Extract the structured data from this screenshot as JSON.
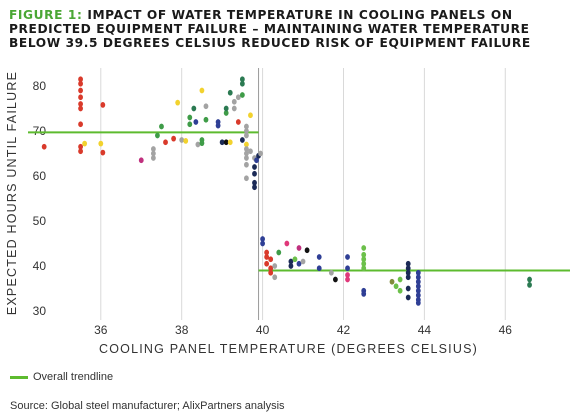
{
  "title": {
    "figure_label": "FIGURE 1:",
    "text": "IMPACT OF WATER TEMPERATURE IN COOLING PANELS ON PREDICTED EQUIPMENT FAILURE – MAINTAINING WATER TEMPERATURE BELOW 39.5 DEGREES CELSIUS REDUCED RISK OF EQUIPMENT FAILURE"
  },
  "legend": {
    "label": "Overall trendline",
    "color": "#5dbb2f"
  },
  "source": "Source: Global steel manufacturer; AlixPartners analysis",
  "chart_data": {
    "type": "scatter",
    "xlabel": "COOLING PANEL TEMPERATURE (DEGREES CELSIUS)",
    "ylabel": "EXPECTED HOURS UNTIL FAILURE",
    "xlim": [
      34.2,
      47.6
    ],
    "ylim": [
      28,
      84
    ],
    "x_ticks": [
      36,
      38,
      40,
      42,
      44,
      46
    ],
    "y_ticks": [
      30,
      40,
      50,
      60,
      70,
      80
    ],
    "grid": "vertical",
    "colors": {
      "red": "#d93a2b",
      "yellow": "#f2d22e",
      "green": "#3f9c48",
      "gray": "#a3a3a3",
      "navy": "#1b2a56",
      "darkgreen": "#2b7a52",
      "pink": "#e0387a",
      "blue": "#2f3f95",
      "lime": "#6cc04a",
      "olive": "#7f8c3a",
      "black": "#111111",
      "magenta": "#c0307e"
    },
    "trendline": [
      {
        "x1": 34.2,
        "x2": 39.9,
        "y": 69.7
      },
      {
        "x1": 39.9,
        "x2": 47.6,
        "y": 39
      }
    ],
    "split_line_x": 39.9,
    "points": [
      {
        "x": 34.6,
        "y": 66.5,
        "c": "red"
      },
      {
        "x": 35.5,
        "y": 81.5,
        "c": "red"
      },
      {
        "x": 35.5,
        "y": 80.5,
        "c": "red"
      },
      {
        "x": 35.5,
        "y": 79,
        "c": "red"
      },
      {
        "x": 35.5,
        "y": 77.5,
        "c": "red"
      },
      {
        "x": 35.5,
        "y": 76,
        "c": "red"
      },
      {
        "x": 35.5,
        "y": 75,
        "c": "red"
      },
      {
        "x": 35.5,
        "y": 71.5,
        "c": "red"
      },
      {
        "x": 35.5,
        "y": 66.5,
        "c": "red"
      },
      {
        "x": 35.5,
        "y": 65.5,
        "c": "red"
      },
      {
        "x": 35.6,
        "y": 67.2,
        "c": "yellow"
      },
      {
        "x": 36,
        "y": 67.2,
        "c": "yellow"
      },
      {
        "x": 36.05,
        "y": 65.2,
        "c": "red"
      },
      {
        "x": 36.05,
        "y": 75.8,
        "c": "red"
      },
      {
        "x": 37,
        "y": 63.5,
        "c": "magenta"
      },
      {
        "x": 37.3,
        "y": 64,
        "c": "gray"
      },
      {
        "x": 37.3,
        "y": 65,
        "c": "gray"
      },
      {
        "x": 37.3,
        "y": 66,
        "c": "gray"
      },
      {
        "x": 37.4,
        "y": 69,
        "c": "green"
      },
      {
        "x": 37.5,
        "y": 71,
        "c": "green"
      },
      {
        "x": 37.6,
        "y": 67.5,
        "c": "red"
      },
      {
        "x": 37.8,
        "y": 68.3,
        "c": "red"
      },
      {
        "x": 37.9,
        "y": 76.3,
        "c": "yellow"
      },
      {
        "x": 38,
        "y": 68,
        "c": "gray"
      },
      {
        "x": 38.1,
        "y": 67.8,
        "c": "yellow"
      },
      {
        "x": 38.2,
        "y": 71.5,
        "c": "green"
      },
      {
        "x": 38.2,
        "y": 73,
        "c": "green"
      },
      {
        "x": 38.3,
        "y": 75,
        "c": "darkgreen"
      },
      {
        "x": 38.35,
        "y": 72,
        "c": "blue"
      },
      {
        "x": 38.4,
        "y": 67,
        "c": "gray"
      },
      {
        "x": 38.5,
        "y": 68,
        "c": "green"
      },
      {
        "x": 38.5,
        "y": 67.3,
        "c": "green"
      },
      {
        "x": 38.5,
        "y": 79,
        "c": "yellow"
      },
      {
        "x": 38.6,
        "y": 72.5,
        "c": "green"
      },
      {
        "x": 38.6,
        "y": 75.5,
        "c": "gray"
      },
      {
        "x": 38.9,
        "y": 72,
        "c": "blue"
      },
      {
        "x": 38.9,
        "y": 71.2,
        "c": "blue"
      },
      {
        "x": 39,
        "y": 67.5,
        "c": "navy"
      },
      {
        "x": 39.1,
        "y": 67.5,
        "c": "black"
      },
      {
        "x": 39.1,
        "y": 74,
        "c": "green"
      },
      {
        "x": 39.1,
        "y": 75,
        "c": "darkgreen"
      },
      {
        "x": 39.2,
        "y": 78.5,
        "c": "darkgreen"
      },
      {
        "x": 39.2,
        "y": 67.5,
        "c": "yellow"
      },
      {
        "x": 39.3,
        "y": 76.5,
        "c": "gray"
      },
      {
        "x": 39.3,
        "y": 75,
        "c": "gray"
      },
      {
        "x": 39.4,
        "y": 77.5,
        "c": "gray"
      },
      {
        "x": 39.4,
        "y": 72,
        "c": "red"
      },
      {
        "x": 39.5,
        "y": 81.5,
        "c": "darkgreen"
      },
      {
        "x": 39.5,
        "y": 80.5,
        "c": "darkgreen"
      },
      {
        "x": 39.5,
        "y": 78,
        "c": "green"
      },
      {
        "x": 39.5,
        "y": 68,
        "c": "navy"
      },
      {
        "x": 39.6,
        "y": 71,
        "c": "gray"
      },
      {
        "x": 39.6,
        "y": 70,
        "c": "gray"
      },
      {
        "x": 39.6,
        "y": 69,
        "c": "gray"
      },
      {
        "x": 39.6,
        "y": 67,
        "c": "yellow"
      },
      {
        "x": 39.6,
        "y": 66,
        "c": "gray"
      },
      {
        "x": 39.6,
        "y": 65,
        "c": "gray"
      },
      {
        "x": 39.6,
        "y": 64,
        "c": "gray"
      },
      {
        "x": 39.6,
        "y": 62.5,
        "c": "gray"
      },
      {
        "x": 39.6,
        "y": 59.5,
        "c": "gray"
      },
      {
        "x": 39.7,
        "y": 73.5,
        "c": "yellow"
      },
      {
        "x": 39.7,
        "y": 65.5,
        "c": "gray"
      },
      {
        "x": 39.8,
        "y": 64,
        "c": "gray"
      },
      {
        "x": 39.8,
        "y": 62,
        "c": "navy"
      },
      {
        "x": 39.8,
        "y": 60.5,
        "c": "navy"
      },
      {
        "x": 39.8,
        "y": 58.5,
        "c": "navy"
      },
      {
        "x": 39.8,
        "y": 57.5,
        "c": "navy"
      },
      {
        "x": 39.85,
        "y": 63.5,
        "c": "blue"
      },
      {
        "x": 39.9,
        "y": 64.5,
        "c": "navy"
      },
      {
        "x": 39.95,
        "y": 65,
        "c": "gray"
      },
      {
        "x": 40,
        "y": 46,
        "c": "blue"
      },
      {
        "x": 40,
        "y": 45,
        "c": "blue"
      },
      {
        "x": 40.1,
        "y": 43,
        "c": "red"
      },
      {
        "x": 40.1,
        "y": 42,
        "c": "red"
      },
      {
        "x": 40.1,
        "y": 40.5,
        "c": "red"
      },
      {
        "x": 40.2,
        "y": 41.5,
        "c": "red"
      },
      {
        "x": 40.2,
        "y": 39.5,
        "c": "red"
      },
      {
        "x": 40.2,
        "y": 38.5,
        "c": "red"
      },
      {
        "x": 40.3,
        "y": 40,
        "c": "gray"
      },
      {
        "x": 40.3,
        "y": 37.5,
        "c": "gray"
      },
      {
        "x": 40.4,
        "y": 43,
        "c": "green"
      },
      {
        "x": 40.6,
        "y": 45,
        "c": "pink"
      },
      {
        "x": 40.7,
        "y": 41,
        "c": "navy"
      },
      {
        "x": 40.7,
        "y": 40,
        "c": "navy"
      },
      {
        "x": 40.8,
        "y": 41.5,
        "c": "lime"
      },
      {
        "x": 40.9,
        "y": 44,
        "c": "magenta"
      },
      {
        "x": 40.9,
        "y": 40.5,
        "c": "blue"
      },
      {
        "x": 41,
        "y": 41,
        "c": "gray"
      },
      {
        "x": 41.1,
        "y": 43.5,
        "c": "black"
      },
      {
        "x": 41.4,
        "y": 42,
        "c": "blue"
      },
      {
        "x": 41.4,
        "y": 39.5,
        "c": "blue"
      },
      {
        "x": 41.7,
        "y": 38.5,
        "c": "gray"
      },
      {
        "x": 41.8,
        "y": 37,
        "c": "black"
      },
      {
        "x": 42.1,
        "y": 42,
        "c": "blue"
      },
      {
        "x": 42.1,
        "y": 39.5,
        "c": "blue"
      },
      {
        "x": 42.1,
        "y": 38,
        "c": "pink"
      },
      {
        "x": 42.1,
        "y": 37,
        "c": "pink"
      },
      {
        "x": 42.5,
        "y": 44,
        "c": "lime"
      },
      {
        "x": 42.5,
        "y": 42.5,
        "c": "lime"
      },
      {
        "x": 42.5,
        "y": 41.5,
        "c": "lime"
      },
      {
        "x": 42.5,
        "y": 40.5,
        "c": "lime"
      },
      {
        "x": 42.5,
        "y": 39.5,
        "c": "lime"
      },
      {
        "x": 42.5,
        "y": 34.5,
        "c": "blue"
      },
      {
        "x": 42.5,
        "y": 33.8,
        "c": "blue"
      },
      {
        "x": 43.2,
        "y": 36.5,
        "c": "olive"
      },
      {
        "x": 43.3,
        "y": 35.5,
        "c": "lime"
      },
      {
        "x": 43.4,
        "y": 37,
        "c": "lime"
      },
      {
        "x": 43.4,
        "y": 34.5,
        "c": "lime"
      },
      {
        "x": 43.6,
        "y": 40.5,
        "c": "navy"
      },
      {
        "x": 43.6,
        "y": 39.5,
        "c": "navy"
      },
      {
        "x": 43.6,
        "y": 38.5,
        "c": "navy"
      },
      {
        "x": 43.6,
        "y": 37.5,
        "c": "navy"
      },
      {
        "x": 43.6,
        "y": 35,
        "c": "navy"
      },
      {
        "x": 43.6,
        "y": 33,
        "c": "navy"
      },
      {
        "x": 43.85,
        "y": 38.5,
        "c": "blue"
      },
      {
        "x": 43.85,
        "y": 37.5,
        "c": "blue"
      },
      {
        "x": 43.85,
        "y": 36.5,
        "c": "blue"
      },
      {
        "x": 43.85,
        "y": 35.5,
        "c": "blue"
      },
      {
        "x": 43.85,
        "y": 34.5,
        "c": "blue"
      },
      {
        "x": 43.85,
        "y": 33.5,
        "c": "blue"
      },
      {
        "x": 43.85,
        "y": 32.5,
        "c": "blue"
      },
      {
        "x": 43.85,
        "y": 31.8,
        "c": "blue"
      },
      {
        "x": 46.6,
        "y": 37,
        "c": "darkgreen"
      },
      {
        "x": 46.6,
        "y": 35.8,
        "c": "darkgreen"
      }
    ]
  }
}
